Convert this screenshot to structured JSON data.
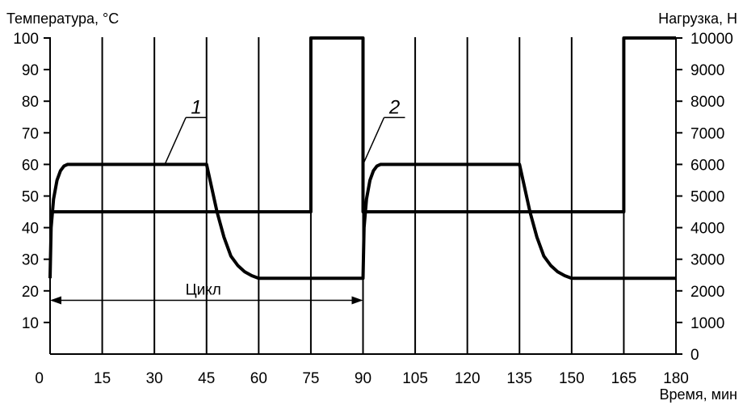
{
  "chart_data": {
    "type": "line",
    "y_left_label": "Температура, °С",
    "y_right_label": "Нагрузка, Н",
    "x_label": "Время, мин",
    "xlim": [
      0,
      180
    ],
    "ylim_left": [
      0,
      100
    ],
    "ylim_right": [
      0,
      10000
    ],
    "x_ticks": [
      "0",
      "15",
      "30",
      "45",
      "60",
      "75",
      "90",
      "105",
      "120",
      "135",
      "150",
      "165",
      "180"
    ],
    "y_left_ticks": [
      "10",
      "20",
      "30",
      "40",
      "50",
      "60",
      "70",
      "80",
      "90",
      "100"
    ],
    "y_right_ticks": [
      "0",
      "1000",
      "2000",
      "3000",
      "4000",
      "5000",
      "6000",
      "7000",
      "8000",
      "9000",
      "10000"
    ],
    "grid": "vertical",
    "series": [
      {
        "name": "1",
        "axis": "left",
        "x": [
          0,
          0.3,
          1,
          2,
          3,
          4,
          5,
          45,
          46,
          48,
          50,
          52,
          54,
          56,
          58,
          60,
          90,
          90.3,
          91,
          92,
          93,
          94,
          95,
          135,
          136,
          138,
          140,
          142,
          144,
          146,
          148,
          150,
          180
        ],
        "y": [
          24,
          40,
          49,
          55,
          58,
          59.5,
          60,
          60,
          55,
          45,
          37,
          31,
          28,
          26,
          24.8,
          24,
          24,
          40,
          49,
          55,
          58,
          59.5,
          60,
          60,
          55,
          45,
          37,
          31,
          28,
          26,
          24.8,
          24,
          24
        ]
      },
      {
        "name": "2",
        "axis": "right",
        "x": [
          0,
          75,
          75,
          90,
          90,
          165,
          165,
          180
        ],
        "y": [
          4500,
          4500,
          10000,
          10000,
          4500,
          4500,
          10000,
          10000
        ]
      }
    ],
    "annotations": [
      {
        "text": "Цикл",
        "x_start": 0,
        "x_end": 90,
        "y": 17
      },
      {
        "text": "1",
        "target_series": "1",
        "target_x": 33,
        "target_y": 60
      },
      {
        "text": "2",
        "target_series": "2",
        "target_x": 90,
        "target_y": 6000
      }
    ]
  }
}
